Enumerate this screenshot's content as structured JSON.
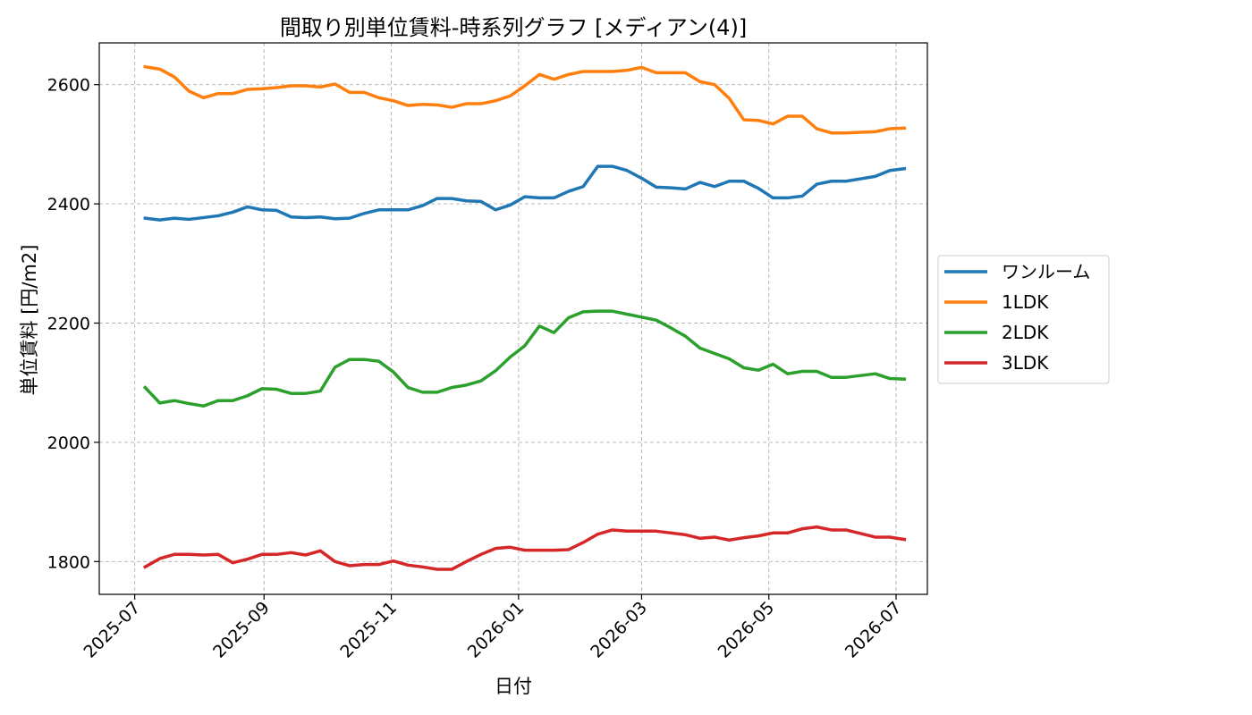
{
  "chart_data": {
    "type": "line",
    "title": "間取り別単位賃料-時系列グラフ [メディアン(4)]",
    "xlabel": "日付",
    "ylabel": "単位賃料 [円/m2]",
    "ylim": [
      1745,
      2670
    ],
    "yticks": [
      1800,
      2000,
      2200,
      2400,
      2600
    ],
    "xlim": [
      "2025-06-14",
      "2026-07-16"
    ],
    "xticks": [
      "2025-07-01",
      "2025-09-01",
      "2025-11-01",
      "2026-01-01",
      "2026-03-01",
      "2026-05-01",
      "2026-07-01"
    ],
    "xtick_labels": [
      "2025-07",
      "2025-09",
      "2025-11",
      "2026-01",
      "2026-03",
      "2026-05",
      "2026-07"
    ],
    "grid": true,
    "legend_position": "center-right outside",
    "x": [
      "2025-07-06",
      "2025-07-13",
      "2025-07-20",
      "2025-07-27",
      "2025-08-03",
      "2025-08-10",
      "2025-08-17",
      "2025-08-24",
      "2025-08-31",
      "2025-09-07",
      "2025-09-14",
      "2025-09-21",
      "2025-09-28",
      "2025-10-05",
      "2025-10-12",
      "2025-10-19",
      "2025-10-26",
      "2025-11-02",
      "2025-11-09",
      "2025-11-16",
      "2025-11-23",
      "2025-11-30",
      "2025-12-07",
      "2025-12-14",
      "2025-12-21",
      "2025-12-28",
      "2026-01-04",
      "2026-01-11",
      "2026-01-18",
      "2026-01-25",
      "2026-02-01",
      "2026-02-08",
      "2026-02-15",
      "2026-02-22",
      "2026-03-01",
      "2026-03-08",
      "2026-03-15",
      "2026-03-22",
      "2026-03-29",
      "2026-04-05",
      "2026-04-12",
      "2026-04-19",
      "2026-04-26",
      "2026-05-03",
      "2026-05-10",
      "2026-05-17",
      "2026-05-24",
      "2026-05-31",
      "2026-06-07",
      "2026-06-14",
      "2026-06-21",
      "2026-06-28",
      "2026-07-05"
    ],
    "series": [
      {
        "name": "ワンルーム",
        "color": "#1f77b4",
        "values": [
          2376,
          2373,
          2376,
          2374,
          2377,
          2380,
          2386,
          2395,
          2390,
          2389,
          2378,
          2377,
          2378,
          2375,
          2376,
          2384,
          2390,
          2390,
          2390,
          2397,
          2409,
          2409,
          2405,
          2404,
          2390,
          2398,
          2412,
          2410,
          2410,
          2421,
          2429,
          2463,
          2463,
          2456,
          2443,
          2428,
          2427,
          2425,
          2436,
          2429,
          2438,
          2438,
          2426,
          2410,
          2410,
          2413,
          2433,
          2438,
          2438,
          2442,
          2446,
          2456,
          2459
        ]
      },
      {
        "name": "1LDK",
        "color": "#ff7f0e",
        "values": [
          2630,
          2626,
          2613,
          2589,
          2578,
          2585,
          2585,
          2592,
          2593,
          2595,
          2598,
          2598,
          2596,
          2601,
          2587,
          2587,
          2578,
          2573,
          2565,
          2567,
          2566,
          2562,
          2568,
          2568,
          2573,
          2581,
          2598,
          2617,
          2609,
          2617,
          2622,
          2622,
          2622,
          2624,
          2629,
          2620,
          2620,
          2620,
          2605,
          2600,
          2577,
          2541,
          2540,
          2534,
          2547,
          2547,
          2526,
          2519,
          2519,
          2520,
          2521,
          2526,
          2527
        ]
      },
      {
        "name": "2LDK",
        "color": "#2ca02c",
        "values": [
          2092,
          2066,
          2070,
          2065,
          2061,
          2070,
          2070,
          2078,
          2090,
          2089,
          2082,
          2082,
          2086,
          2126,
          2139,
          2139,
          2136,
          2118,
          2092,
          2084,
          2084,
          2092,
          2096,
          2103,
          2120,
          2143,
          2162,
          2195,
          2184,
          2209,
          2219,
          2220,
          2220,
          2215,
          2210,
          2205,
          2192,
          2178,
          2158,
          2149,
          2140,
          2125,
          2121,
          2131,
          2115,
          2119,
          2119,
          2109,
          2109,
          2112,
          2115,
          2107,
          2106
        ]
      },
      {
        "name": "3LDK",
        "color": "#d62728",
        "values": [
          1791,
          1805,
          1812,
          1812,
          1811,
          1812,
          1798,
          1804,
          1812,
          1812,
          1815,
          1811,
          1818,
          1800,
          1793,
          1795,
          1795,
          1801,
          1794,
          1791,
          1787,
          1787,
          1800,
          1812,
          1822,
          1824,
          1819,
          1819,
          1819,
          1820,
          1832,
          1846,
          1853,
          1851,
          1851,
          1851,
          1848,
          1845,
          1839,
          1841,
          1836,
          1840,
          1843,
          1848,
          1848,
          1855,
          1858,
          1853,
          1853,
          1847,
          1841,
          1841,
          1837
        ]
      }
    ]
  }
}
